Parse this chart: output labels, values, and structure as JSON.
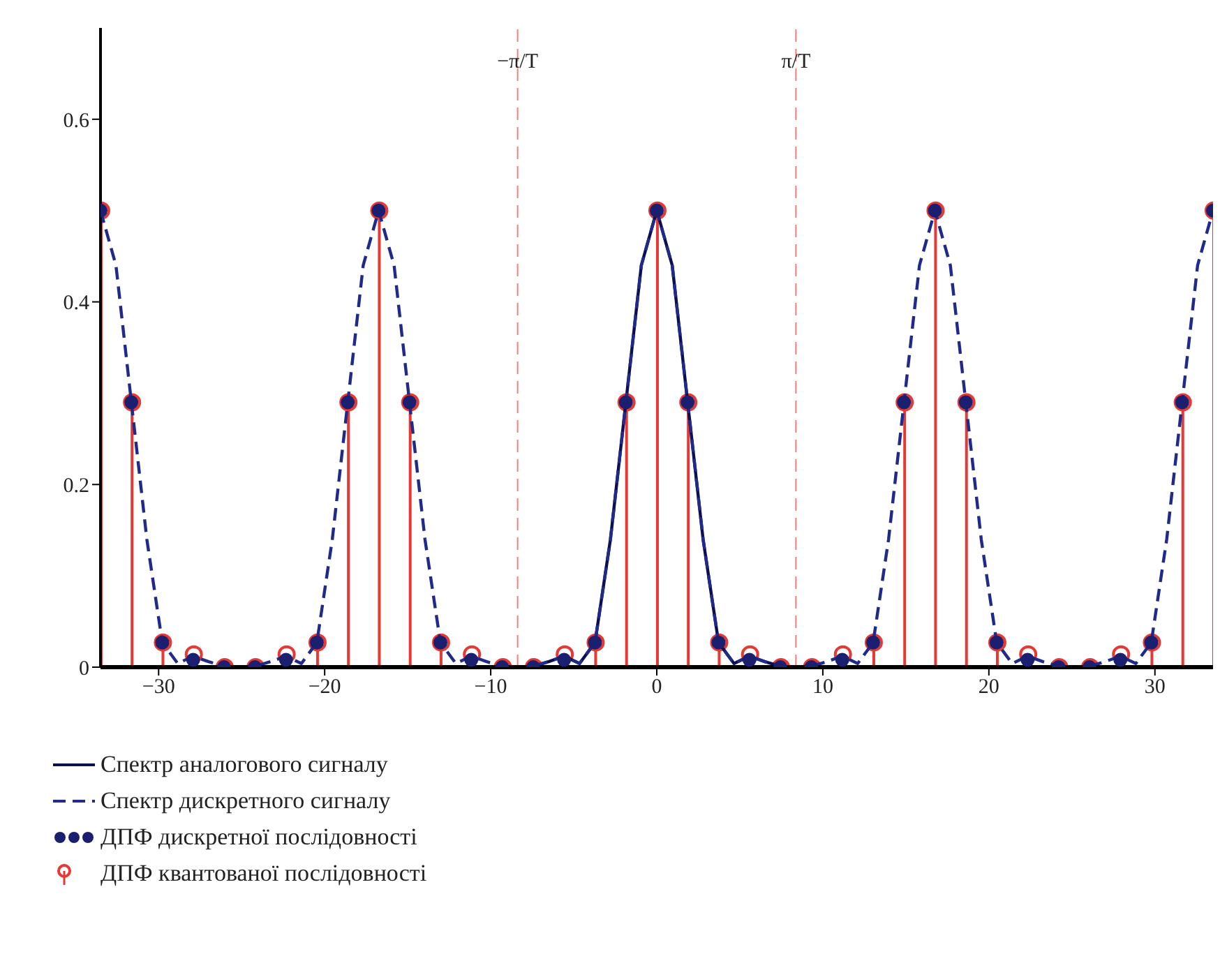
{
  "chart_data": {
    "type": "line",
    "xlim": [
      -33.5,
      33.5
    ],
    "xticks": [
      {
        "value": -30,
        "label": "−30"
      },
      {
        "value": -20,
        "label": "−20"
      },
      {
        "value": -10,
        "label": "−10"
      },
      0,
      10,
      20,
      30
    ],
    "ylim": [
      0,
      0.7
    ],
    "yticks": [
      0,
      0.2,
      0.4,
      0.6
    ],
    "grid": false,
    "legend": "bottom left",
    "ref_lines": [
      {
        "axis": "x",
        "value": -8.38,
        "label": "−π/T",
        "color": "#f08080",
        "line_style": "dashed"
      },
      {
        "axis": "x",
        "value": 8.38,
        "label": "π/T",
        "color": "#f08080",
        "line_style": "dashed"
      }
    ],
    "series": [
      {
        "name": "Спектр аналогового сигналу",
        "color": "#0d1050",
        "line_style": "solid",
        "marker": "none",
        "x": [
          -8.38,
          -7.44,
          -6.51,
          -5.58,
          -4.65,
          -3.72,
          -2.79,
          -1.86,
          -0.93,
          0,
          0.93,
          1.86,
          2.79,
          3.72,
          4.65,
          5.58,
          6.51,
          7.44,
          8.38
        ],
        "values": [
          0,
          0.001,
          0.006,
          0.012,
          0.004,
          0.027,
          0.14,
          0.29,
          0.44,
          0.5,
          0.44,
          0.29,
          0.14,
          0.027,
          0.004,
          0.012,
          0.006,
          0.001,
          0
        ]
      },
      {
        "name": "Спектр дискретного сигналу",
        "color": "#1f2a8a",
        "line_style": "dashed",
        "marker": "none",
        "x": [
          -33.5,
          -32.57,
          -31.64,
          -30.71,
          -29.78,
          -28.85,
          -27.92,
          -26.99,
          -26.06,
          -25.13,
          -24.2,
          -23.26,
          -22.33,
          -21.4,
          -20.47,
          -19.54,
          -18.61,
          -17.68,
          -16.75,
          -15.82,
          -14.89,
          -13.96,
          -13.03,
          -12.1,
          -11.17,
          -10.24,
          -9.31,
          -8.38,
          -7.44,
          -6.51,
          -5.58,
          -4.65,
          -3.72,
          -2.79,
          -1.86,
          -0.93,
          0,
          0.93,
          1.86,
          2.79,
          3.72,
          4.65,
          5.58,
          6.51,
          7.44,
          8.38,
          9.31,
          10.24,
          11.17,
          12.1,
          13.03,
          13.96,
          14.89,
          15.82,
          16.75,
          17.68,
          18.61,
          19.54,
          20.47,
          21.4,
          22.33,
          23.26,
          24.2,
          25.13,
          26.06,
          26.99,
          27.92,
          28.85,
          29.78,
          30.71,
          31.64,
          32.57,
          33.5
        ],
        "values": [
          0.5,
          0.44,
          0.29,
          0.14,
          0.027,
          0.004,
          0.012,
          0.006,
          0.001,
          0,
          0.001,
          0.006,
          0.012,
          0.004,
          0.027,
          0.14,
          0.29,
          0.44,
          0.5,
          0.44,
          0.29,
          0.14,
          0.027,
          0.004,
          0.012,
          0.006,
          0.001,
          0,
          0.001,
          0.006,
          0.012,
          0.004,
          0.027,
          0.14,
          0.29,
          0.44,
          0.5,
          0.44,
          0.29,
          0.14,
          0.027,
          0.004,
          0.012,
          0.006,
          0.001,
          0,
          0.001,
          0.006,
          0.012,
          0.004,
          0.027,
          0.14,
          0.29,
          0.44,
          0.5,
          0.44,
          0.29,
          0.14,
          0.027,
          0.004,
          0.012,
          0.006,
          0.001,
          0,
          0.001,
          0.006,
          0.012,
          0.004,
          0.027,
          0.14,
          0.29,
          0.44,
          0.5
        ]
      },
      {
        "name": "ДПФ дискретної послідовності",
        "type": "scatter",
        "color": "#1a1f70",
        "marker": "circle",
        "x": [
          -33.5,
          -31.64,
          -29.78,
          -27.92,
          -26.06,
          -24.2,
          -22.33,
          -20.47,
          -18.61,
          -16.75,
          -14.89,
          -13.03,
          -11.17,
          -9.31,
          -7.44,
          -5.58,
          -3.72,
          -1.86,
          0,
          1.86,
          3.72,
          5.58,
          7.44,
          9.31,
          11.17,
          13.03,
          14.89,
          16.75,
          18.61,
          20.47,
          22.33,
          24.2,
          26.06,
          27.92,
          29.78,
          31.64,
          33.5
        ],
        "values": [
          0.5,
          0.29,
          0.027,
          0.008,
          0,
          0,
          0.008,
          0.027,
          0.29,
          0.5,
          0.29,
          0.027,
          0.008,
          0,
          0,
          0.008,
          0.027,
          0.29,
          0.5,
          0.29,
          0.027,
          0.008,
          0,
          0,
          0.008,
          0.027,
          0.29,
          0.5,
          0.29,
          0.027,
          0.008,
          0,
          0,
          0.008,
          0.027,
          0.29,
          0.5
        ]
      },
      {
        "name": "ДПФ квантованої послідовності",
        "type": "lollipop",
        "color": "#e53935",
        "marker": "circle",
        "x": [
          -33.5,
          -31.64,
          -29.78,
          -27.92,
          -26.06,
          -24.2,
          -22.33,
          -20.47,
          -18.61,
          -16.75,
          -14.89,
          -13.03,
          -11.17,
          -9.31,
          -7.44,
          -5.58,
          -3.72,
          -1.86,
          0,
          1.86,
          3.72,
          5.58,
          7.44,
          9.31,
          11.17,
          13.03,
          14.89,
          16.75,
          18.61,
          20.47,
          22.33,
          24.2,
          26.06,
          27.92,
          29.78,
          31.64,
          33.5
        ],
        "values": [
          0.5,
          0.29,
          0.027,
          0.014,
          0,
          0,
          0.014,
          0.027,
          0.29,
          0.5,
          0.29,
          0.027,
          0.014,
          0,
          0,
          0.014,
          0.027,
          0.29,
          0.5,
          0.29,
          0.027,
          0.014,
          0,
          0,
          0.014,
          0.027,
          0.29,
          0.5,
          0.29,
          0.027,
          0.014,
          0,
          0,
          0.014,
          0.027,
          0.29,
          0.5
        ]
      }
    ]
  }
}
